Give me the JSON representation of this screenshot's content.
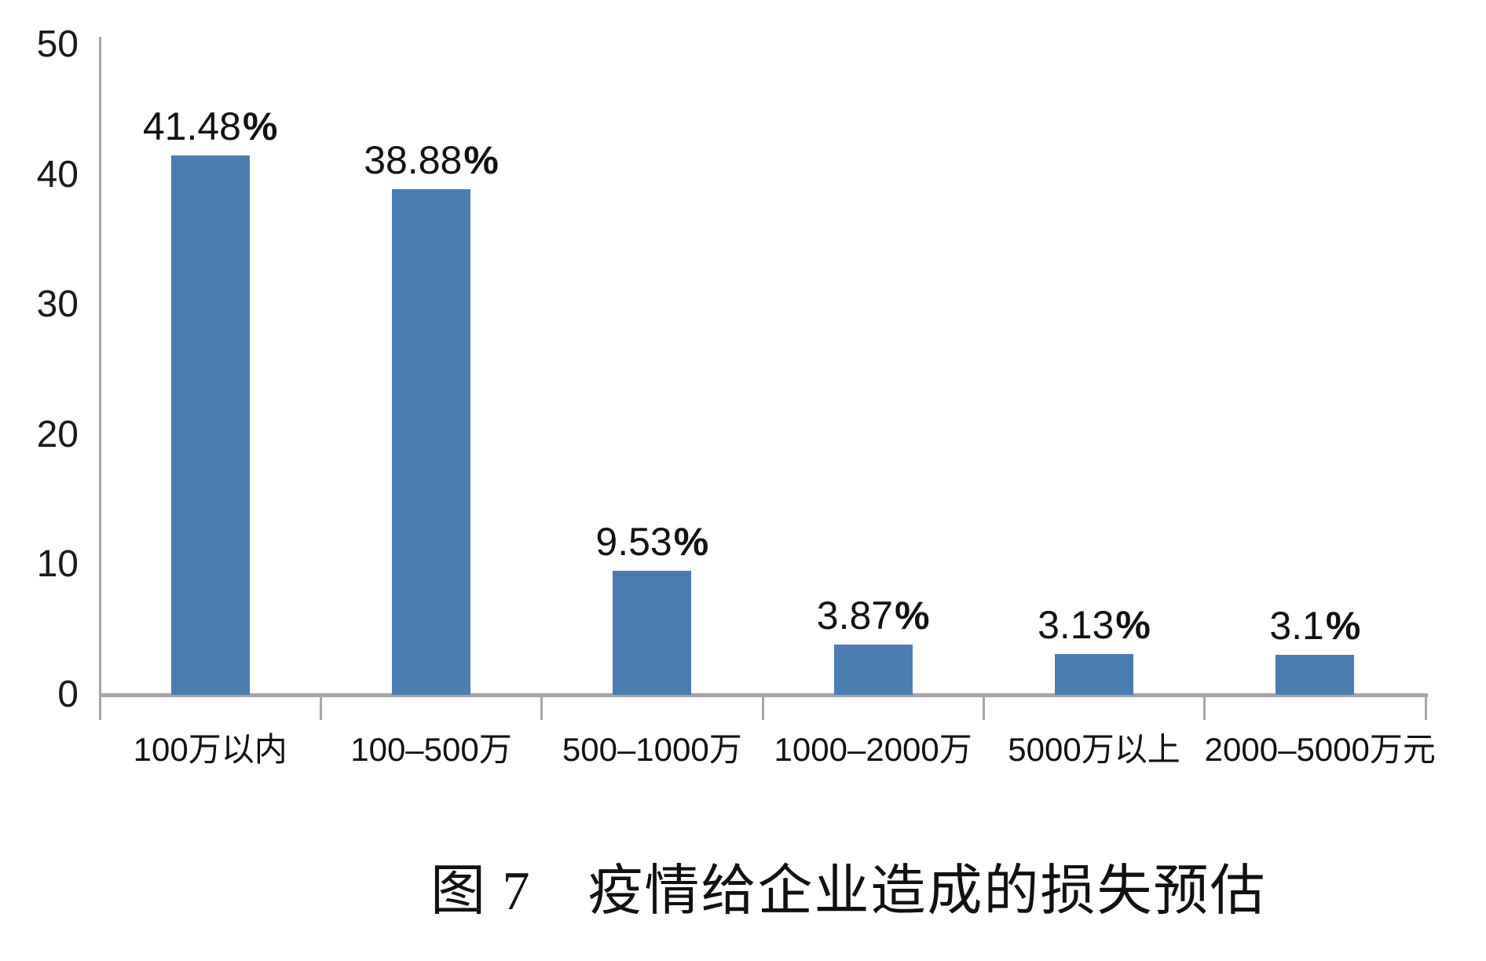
{
  "figure": {
    "caption": "图 7　疫情给企业造成的损失预估"
  },
  "chart_data": {
    "type": "bar",
    "title": "图 7　疫情给企业造成的损失预估",
    "categories": [
      "100万以内",
      "100–500万",
      "500–1000万",
      "1000–2000万",
      "5000万以上",
      "2000–5000万元"
    ],
    "values": [
      41.48,
      38.88,
      9.53,
      3.87,
      3.13,
      3.1
    ],
    "value_labels": [
      "41.48",
      "38.88",
      "9.53",
      "3.87",
      "3.13",
      "3.1"
    ],
    "percent_sign": "%",
    "unit": "%",
    "xlabel": "",
    "ylabel": "",
    "ylim": [
      0,
      50
    ],
    "y_ticks": [
      50,
      40,
      30,
      20,
      10,
      0
    ],
    "grid": false,
    "legend": "none",
    "bar_color": "#4c7db2",
    "axis_color": "#a6a6a6",
    "text_color": "#1a1a1a"
  }
}
